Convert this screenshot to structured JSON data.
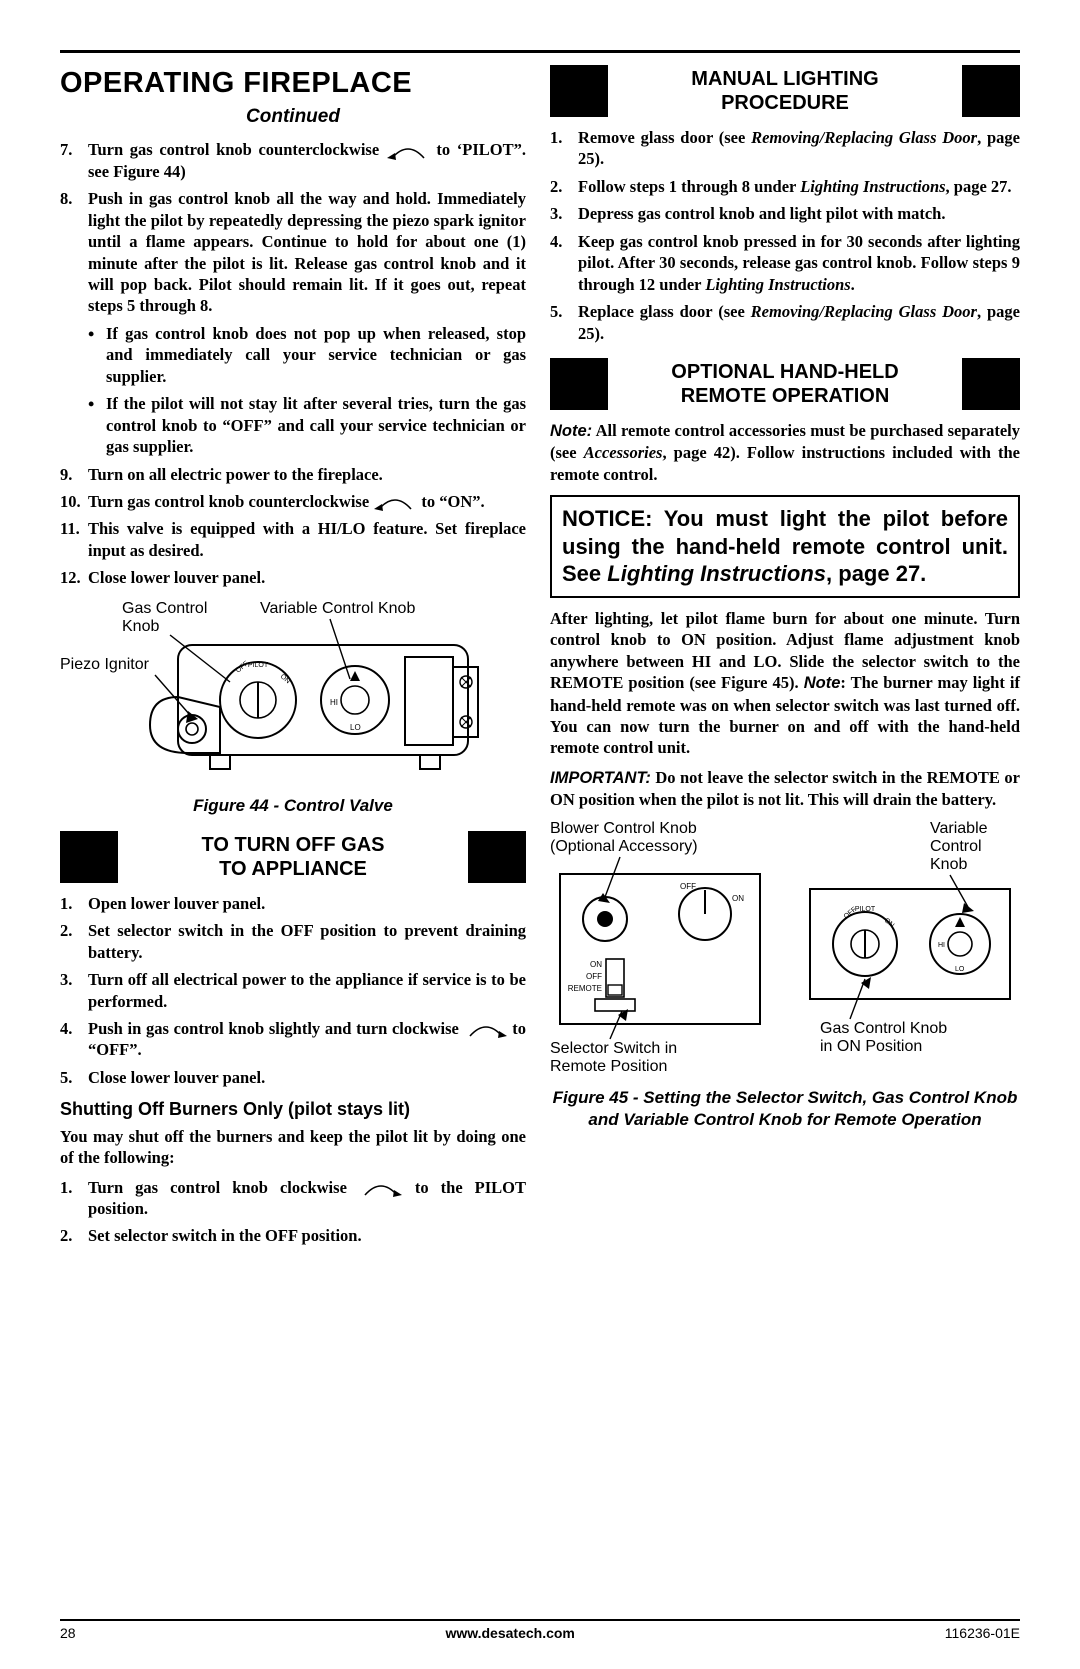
{
  "header": {
    "title": "OPERATING FIREPLACE",
    "continued": "Continued"
  },
  "left": {
    "steps_a": [
      {
        "n": "7.",
        "pre": "Turn gas control knob counterclockwise",
        "post": " to ‘PILOT”. see Figure 44)"
      },
      {
        "n": "8.",
        "text": "Push in gas control knob all the way and hold. Immediately light the pilot by repeatedly depressing the piezo spark ignitor until a flame appears. Continue to hold for about one (1) minute after the pilot is lit. Release gas control knob and it will pop back. Pilot should remain lit. If it goes out, repeat steps 5 through 8."
      }
    ],
    "bullets": [
      "If gas control knob does not pop up when released, stop and immediately call your service technician or gas supplier.",
      "If the pilot will not stay lit after several tries, turn the gas control knob to “OFF” and call your service technician or gas supplier."
    ],
    "steps_b": [
      {
        "n": "9.",
        "text": "Turn on all electric power to the fireplace."
      },
      {
        "n": "10.",
        "pre": "Turn gas control knob counterclockwise",
        "post": " to “ON”."
      },
      {
        "n": "11.",
        "text": "This valve is equipped with a HI/LO feature. Set fireplace input as desired."
      },
      {
        "n": "12.",
        "text": "Close lower louver panel."
      }
    ],
    "fig44": {
      "caption": "Figure 44 - Control Valve",
      "labels": {
        "gas_knob": "Gas Control\nKnob",
        "var_knob": "Variable Control Knob",
        "piezo": "Piezo Ignitor"
      },
      "knob_text": {
        "off": "OFF",
        "pilot": "PILOT",
        "on": "ON",
        "hi": "HI",
        "lo": "LO"
      }
    },
    "section_off": {
      "line1": "TO TURN OFF GAS",
      "line2": "TO APPLIANCE"
    },
    "off_steps": [
      {
        "n": "1.",
        "text": "Open lower louver panel."
      },
      {
        "n": "2.",
        "text": "Set selector switch in the OFF position to prevent draining battery."
      },
      {
        "n": "3.",
        "text": "Turn off all electrical power to the appliance if service is to be performed."
      },
      {
        "n": "4.",
        "pre": "Push in gas control knob slightly and turn clockwise",
        "post": " to “OFF”."
      },
      {
        "n": "5.",
        "text": "Close lower louver panel."
      }
    ],
    "sub_h": "Shutting Off Burners Only (pilot stays lit)",
    "sub_p": "You may shut off the burners and keep the pilot lit by doing one of the following:",
    "sub_steps": [
      {
        "n": "1.",
        "pre": "Turn gas control knob clockwise",
        "post": " to the PILOT position."
      },
      {
        "n": "2.",
        "text": "Set selector switch in the OFF position."
      }
    ]
  },
  "right": {
    "section_manual": {
      "line1": "MANUAL LIGHTING",
      "line2": "PROCEDURE"
    },
    "manual_steps": [
      {
        "n": "1.",
        "pre": "Remove glass door (see ",
        "it": "Removing/Replacing Glass Door",
        "post": ", page 25)."
      },
      {
        "n": "2.",
        "pre": "Follow steps 1 through 8 under ",
        "it": "Lighting Instructions",
        "post": ", page 27."
      },
      {
        "n": "3.",
        "text": "Depress gas control knob and light pilot with match."
      },
      {
        "n": "4.",
        "pre": "Keep gas control knob pressed in for 30 seconds after lighting pilot. After 30 seconds, release gas control knob. Follow steps 9 through 12 under ",
        "it": "Lighting Instructions",
        "post": "."
      },
      {
        "n": "5.",
        "pre": "Replace glass door (see ",
        "it": "Removing/Replacing Glass Door",
        "post": ", page 25)."
      }
    ],
    "section_remote": {
      "line1": "OPTIONAL HAND-HELD",
      "line2": "REMOTE OPERATION"
    },
    "note1_lbl": "Note:",
    "note1_txt": " All remote control accessories must be purchased separately (see ",
    "note1_it": "Accessories",
    "note1_post": ", page 42). Follow instructions included with the remote control.",
    "notice_pre": "NOTICE: You must light the pilot before using the hand-held remote control unit. See ",
    "notice_it": "Lighting Instructions",
    "notice_post": ", page 27.",
    "para1_a": "After lighting, let pilot flame burn for about one minute. Turn control knob to ON position. Adjust flame adjustment knob anywhere between HI and LO. Slide the selector switch to the REMOTE position (see Figure 45). ",
    "para1_note_lbl": "Note",
    "para1_b": ": The burner may light if hand-held remote was on when selector switch was last turned off. You can now turn the burner on and off with the hand-held remote control unit.",
    "imp_lbl": "IMPORTANT:",
    "imp_txt": " Do not leave the selector switch in the REMOTE or ON position when the pilot is not lit. This will drain the battery.",
    "fig45": {
      "labels": {
        "blower": "Blower Control Knob\n(Optional Accessory)",
        "var": "Variable\nControl\nKnob",
        "selector": "Selector Switch in\nRemote Position",
        "gas": "Gas Control Knob\nin ON Position",
        "off": "OFF",
        "on": "ON",
        "remote": "REMOTE",
        "pilot": "PILOT",
        "hi": "HI",
        "lo": "LO"
      },
      "caption": "Figure 45 - Setting the Selector Switch, Gas Control Knob and Variable Control Knob for Remote Operation"
    }
  },
  "footer": {
    "page": "28",
    "url": "www.desatech.com",
    "doc": "116236-01E"
  },
  "colors": {
    "black": "#000000",
    "white": "#ffffff"
  }
}
